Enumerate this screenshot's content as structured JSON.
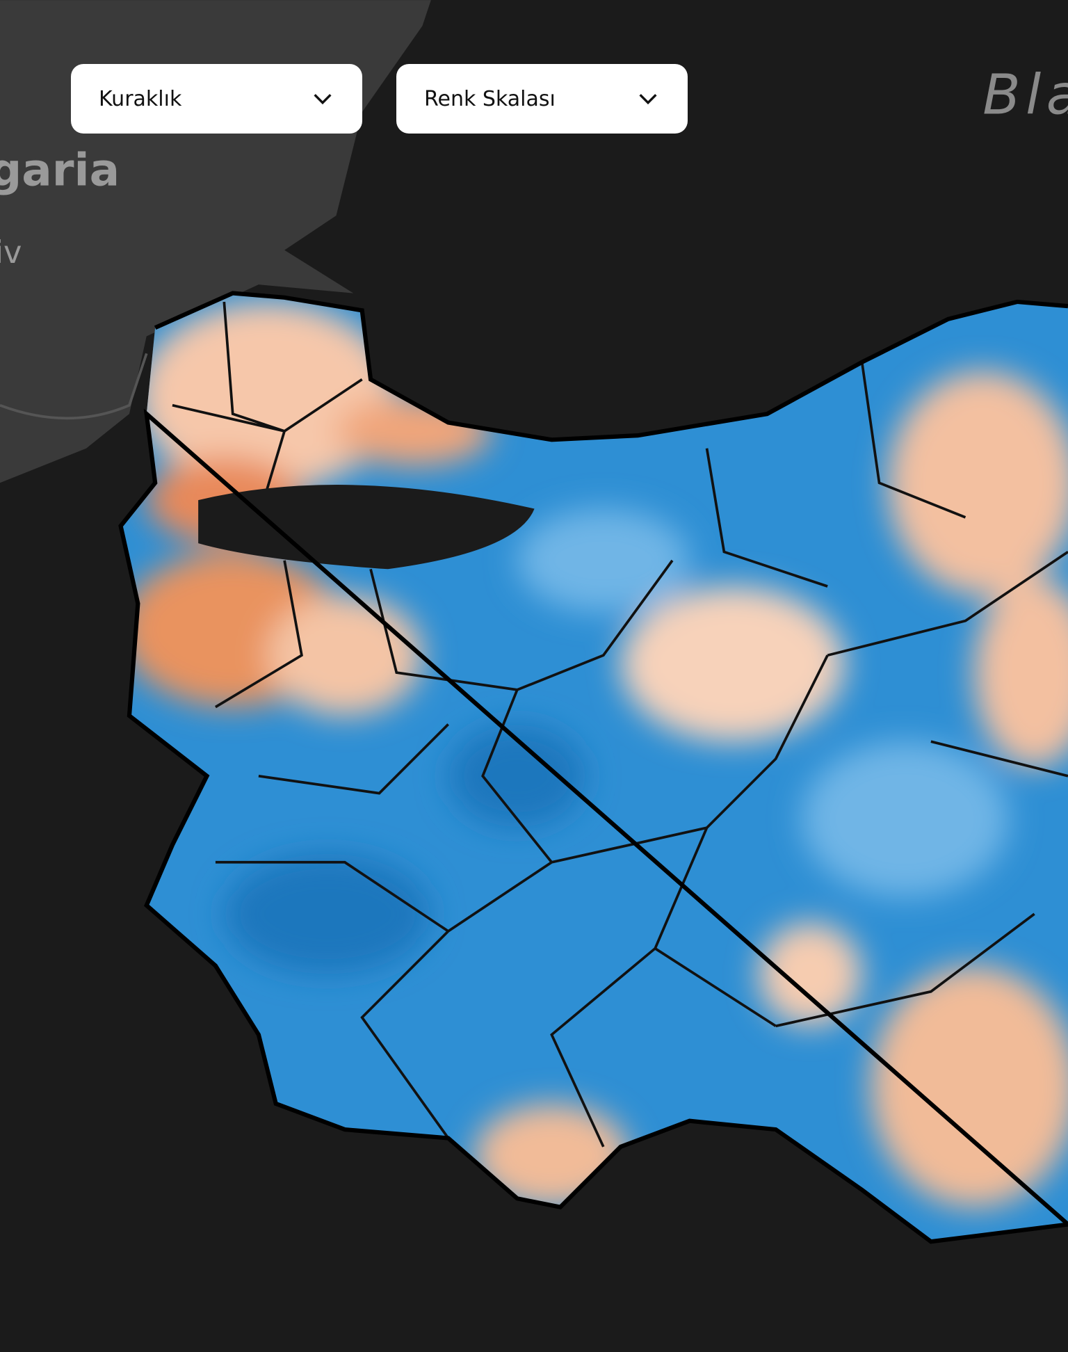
{
  "controls": {
    "dropdowns": [
      {
        "label": "Kuraklık"
      },
      {
        "label": "Renk Skalası"
      }
    ]
  },
  "map_labels": {
    "sea": "Bla",
    "country": "garia",
    "city": "iv"
  }
}
